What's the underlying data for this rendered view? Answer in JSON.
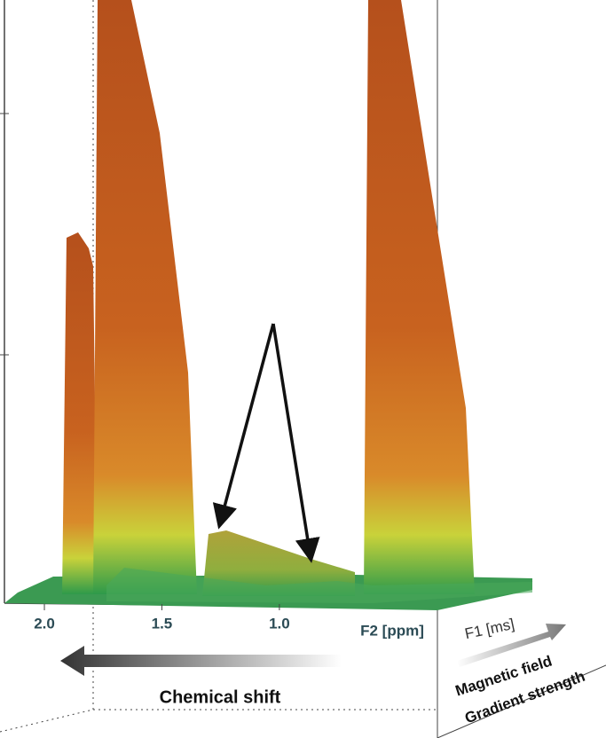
{
  "chart_data": {
    "type": "surface3d",
    "xlabel": "F2 [ppm]",
    "zlabel": "F1 [ms]",
    "xlim": [
      2.17,
      0.32
    ],
    "xticks": [
      {
        "value": 2,
        "label": "2.0"
      },
      {
        "value": 1.5,
        "label": "1.5"
      },
      {
        "value": 1,
        "label": "1.0"
      }
    ],
    "annotations": {
      "shift_arrow": "Chemical shift",
      "field_arrow_1": "Magnetic field",
      "field_arrow_2": "Gradient strength"
    }
  }
}
